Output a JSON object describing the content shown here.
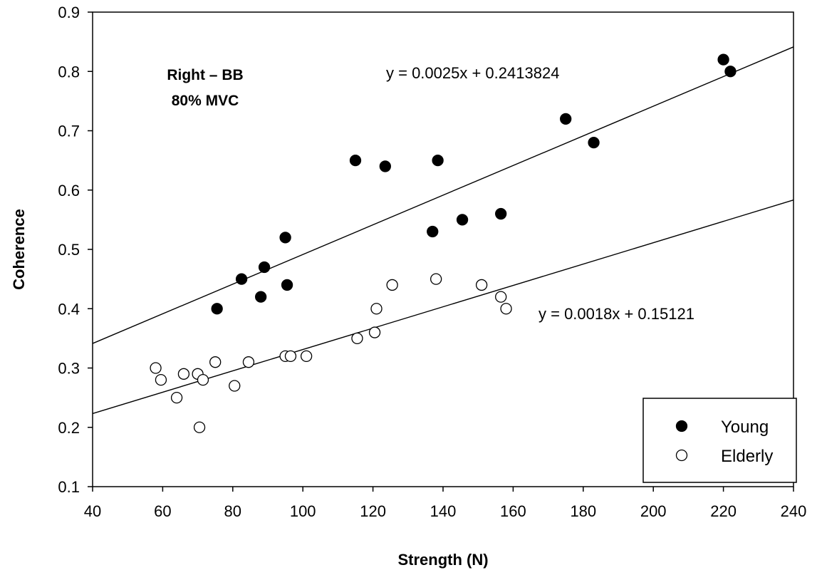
{
  "chart_data": {
    "type": "scatter",
    "title": "",
    "xlabel": "Strength (N)",
    "ylabel": "Coherence",
    "xlim": [
      40,
      240
    ],
    "ylim": [
      0.1,
      0.9
    ],
    "xticks": [
      40,
      60,
      80,
      100,
      120,
      140,
      160,
      180,
      200,
      220,
      240
    ],
    "yticks": [
      0.1,
      0.2,
      0.3,
      0.4,
      0.5,
      0.6,
      0.7,
      0.8,
      0.9
    ],
    "xtick_labels": [
      "40",
      "60",
      "80",
      "100",
      "120",
      "140",
      "160",
      "180",
      "200",
      "220",
      "240"
    ],
    "ytick_labels": [
      "0.1",
      "0.2",
      "0.3",
      "0.4",
      "0.5",
      "0.6",
      "0.7",
      "0.8",
      "0.9"
    ],
    "grid": false,
    "legend_position": "bottom-right",
    "annotation_lines": [
      "Right – BB",
      "80% MVC"
    ],
    "series": [
      {
        "name": "Young",
        "marker": "filled-circle",
        "color": "#000000",
        "points": [
          [
            75.5,
            0.4
          ],
          [
            82.5,
            0.45
          ],
          [
            88,
            0.42
          ],
          [
            89,
            0.47
          ],
          [
            95,
            0.52
          ],
          [
            95.5,
            0.44
          ],
          [
            115,
            0.65
          ],
          [
            123.5,
            0.64
          ],
          [
            137,
            0.53
          ],
          [
            138.5,
            0.65
          ],
          [
            145.5,
            0.55
          ],
          [
            156.5,
            0.56
          ],
          [
            175,
            0.72
          ],
          [
            183,
            0.68
          ],
          [
            220,
            0.82
          ],
          [
            222,
            0.8
          ]
        ],
        "fit": {
          "slope": 0.0025,
          "intercept": 0.2413824,
          "equation": "y = 0.0025x + 0.2413824"
        }
      },
      {
        "name": "Elderly",
        "marker": "open-circle",
        "color": "#000000",
        "points": [
          [
            58,
            0.3
          ],
          [
            59.5,
            0.28
          ],
          [
            64,
            0.25
          ],
          [
            66,
            0.29
          ],
          [
            70,
            0.29
          ],
          [
            70.5,
            0.2
          ],
          [
            71.5,
            0.28
          ],
          [
            75,
            0.31
          ],
          [
            80.5,
            0.27
          ],
          [
            84.5,
            0.31
          ],
          [
            95,
            0.32
          ],
          [
            96.5,
            0.32
          ],
          [
            101,
            0.32
          ],
          [
            115.5,
            0.35
          ],
          [
            120.5,
            0.36
          ],
          [
            121,
            0.4
          ],
          [
            125.5,
            0.44
          ],
          [
            138,
            0.45
          ],
          [
            151,
            0.44
          ],
          [
            156.5,
            0.42
          ],
          [
            158,
            0.4
          ]
        ],
        "fit": {
          "slope": 0.0018,
          "intercept": 0.15121,
          "equation": "y = 0.0018x + 0.15121"
        }
      }
    ]
  }
}
